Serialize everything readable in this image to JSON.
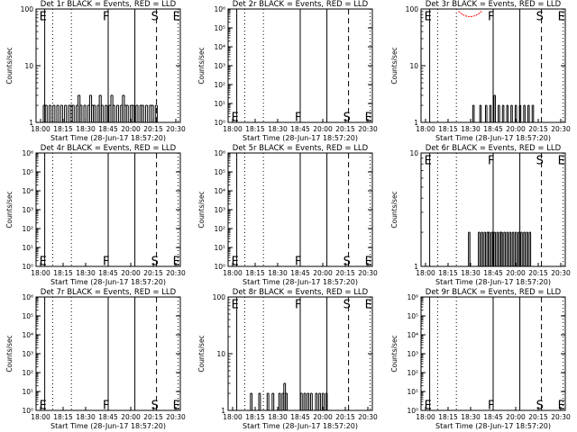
{
  "figure": {
    "layout": "3x3 grid of count-rate panels",
    "colors": {
      "events": "#000000",
      "lld": "#ff0000",
      "background": "#ffffff"
    }
  },
  "chart_data": [
    {
      "type": "bar",
      "panel": 1,
      "title": "Det 1r BLACK = Events, RED = LLD",
      "xlabel": "Start Time (28-Jun-17 18:57:20)",
      "ylabel": "Counts/sec",
      "yscale": "log",
      "ylim": [
        1,
        100
      ],
      "y_ticks": [
        {
          "v": 1,
          "label": "1"
        },
        {
          "v": 10,
          "label": "10"
        },
        {
          "v": 100,
          "label": "100"
        }
      ],
      "x_ticks": [
        "18:00",
        "18:15",
        "18:30",
        "18:45",
        "20:00",
        "20:15",
        "20:30"
      ],
      "lines": [
        {
          "x": 0.06,
          "style": "solid",
          "letter": "E",
          "y": 0.95
        },
        {
          "x": 0.245,
          "style": "dotted"
        },
        {
          "x": 0.5,
          "style": "solid",
          "letter": "F",
          "y": 0.95
        },
        {
          "x": 0.685,
          "style": "solid"
        },
        {
          "x": 0.835,
          "style": "dashed",
          "letter": "S",
          "y": 0.95
        },
        {
          "x": 0.985,
          "style": "dotted",
          "letter": "E",
          "y": 0.95
        },
        {
          "x": 0.115,
          "style": "dotted"
        },
        {
          "x": 1.0,
          "style": "dashed"
        }
      ],
      "events": {
        "start": 0.05,
        "end": 0.84,
        "values": [
          2,
          2,
          1,
          2,
          1,
          2,
          1,
          2,
          1,
          2,
          1,
          2,
          1,
          2,
          2,
          2,
          1,
          2,
          3,
          2,
          1,
          2,
          1,
          2,
          3,
          2,
          2,
          1,
          2,
          3,
          2,
          1,
          2,
          1,
          2,
          3,
          2,
          1,
          2,
          1,
          2,
          3,
          2,
          2,
          1,
          2,
          2,
          1,
          2,
          1,
          2,
          2,
          1,
          2,
          1,
          2,
          2,
          1,
          2
        ]
      }
    },
    {
      "type": "bar",
      "panel": 2,
      "title": "Det 2r BLACK = Events, RED = LLD",
      "xlabel": "Start Time (28-Jun-17 18:57:20)",
      "ylabel": "Counts/sec",
      "yscale": "log",
      "ylim": [
        1,
        1000000
      ],
      "y_ticks": [
        {
          "v": 1,
          "label": "10⁰"
        },
        {
          "v": 10,
          "label": "10¹"
        },
        {
          "v": 100,
          "label": "10²"
        },
        {
          "v": 1000,
          "label": "10³"
        },
        {
          "v": 10000,
          "label": "10⁴"
        },
        {
          "v": 100000,
          "label": "10⁵"
        },
        {
          "v": 1000000,
          "label": "10⁶"
        }
      ],
      "x_ticks": [
        "18:00",
        "18:15",
        "18:30",
        "18:45",
        "20:00",
        "20:15",
        "20:30"
      ],
      "lines": [
        {
          "x": 0.06,
          "style": "solid",
          "letter": "E",
          "y": 0.06
        },
        {
          "x": 0.245,
          "style": "dotted"
        },
        {
          "x": 0.5,
          "style": "solid",
          "letter": "F",
          "y": 0.06
        },
        {
          "x": 0.685,
          "style": "solid"
        },
        {
          "x": 0.835,
          "style": "dashed",
          "letter": "S",
          "y": 0.06
        },
        {
          "x": 0.985,
          "style": "dotted",
          "letter": "E",
          "y": 0.06
        },
        {
          "x": 0.115,
          "style": "dotted"
        },
        {
          "x": 1.0,
          "style": "dashed"
        }
      ],
      "events": {
        "start": 0.05,
        "end": 0.84,
        "values": []
      }
    },
    {
      "type": "bar",
      "panel": 3,
      "title": "Det 3r BLACK = Events, RED = LLD",
      "xlabel": "Start Time (28-Jun-17 18:57:20)",
      "ylabel": "Counts/sec",
      "yscale": "log",
      "ylim": [
        1,
        100
      ],
      "y_ticks": [
        {
          "v": 1,
          "label": "1"
        },
        {
          "v": 10,
          "label": "10"
        },
        {
          "v": 100,
          "label": "100"
        }
      ],
      "x_ticks": [
        "18:00",
        "18:15",
        "18:30",
        "18:45",
        "20:00",
        "20:15",
        "20:30"
      ],
      "lines": [
        {
          "x": 0.06,
          "style": "solid",
          "letter": "E",
          "y": 0.95
        },
        {
          "x": 0.245,
          "style": "dotted"
        },
        {
          "x": 0.5,
          "style": "solid",
          "letter": "F",
          "y": 0.95
        },
        {
          "x": 0.685,
          "style": "solid"
        },
        {
          "x": 0.835,
          "style": "dashed",
          "letter": "S",
          "y": 0.95
        },
        {
          "x": 0.985,
          "style": "dotted",
          "letter": "E",
          "y": 0.95
        },
        {
          "x": 0.115,
          "style": "dotted"
        },
        {
          "x": 1.0,
          "style": "dashed"
        }
      ],
      "lld_arc": {
        "x0": 0.26,
        "x1": 0.42,
        "y": 0.98
      },
      "events": {
        "start": 0.28,
        "end": 0.78,
        "values": [
          1,
          1,
          1,
          1,
          1,
          1,
          1,
          1,
          2,
          1,
          1,
          1,
          1,
          2,
          1,
          1,
          1,
          2,
          1,
          1,
          2,
          1,
          1,
          3,
          1,
          1,
          2,
          1,
          1,
          2,
          1,
          1,
          2,
          1,
          1,
          2,
          1,
          1,
          2,
          1,
          1,
          2,
          1,
          1,
          2,
          1,
          1,
          2,
          1,
          1,
          2
        ]
      }
    },
    {
      "type": "bar",
      "panel": 4,
      "title": "Det 4r BLACK = Events, RED = LLD",
      "xlabel": "Start Time (28-Jun-17 18:57:20)",
      "ylabel": "Counts/sec",
      "yscale": "log",
      "ylim": [
        1,
        1000000
      ],
      "y_ticks": [
        {
          "v": 1,
          "label": "10⁰"
        },
        {
          "v": 10,
          "label": "10¹"
        },
        {
          "v": 100,
          "label": "10²"
        },
        {
          "v": 1000,
          "label": "10³"
        },
        {
          "v": 10000,
          "label": "10⁴"
        },
        {
          "v": 100000,
          "label": "10⁵"
        },
        {
          "v": 1000000,
          "label": "10⁶"
        }
      ],
      "x_ticks": [
        "18:00",
        "18:15",
        "18:30",
        "18:45",
        "20:00",
        "20:15",
        "20:30"
      ],
      "lines": [
        {
          "x": 0.06,
          "style": "solid",
          "letter": "E",
          "y": 0.06
        },
        {
          "x": 0.245,
          "style": "dotted"
        },
        {
          "x": 0.5,
          "style": "solid",
          "letter": "F",
          "y": 0.06
        },
        {
          "x": 0.685,
          "style": "solid"
        },
        {
          "x": 0.835,
          "style": "dashed",
          "letter": "S",
          "y": 0.06
        },
        {
          "x": 0.985,
          "style": "dotted",
          "letter": "E",
          "y": 0.06
        },
        {
          "x": 0.115,
          "style": "dotted"
        },
        {
          "x": 1.0,
          "style": "dashed"
        }
      ],
      "events": {
        "start": 0.05,
        "end": 0.84,
        "values": []
      }
    },
    {
      "type": "bar",
      "panel": 5,
      "title": "Det 5r BLACK = Events, RED = LLD",
      "xlabel": "Start Time (28-Jun-17 18:57:20)",
      "ylabel": "Counts/sec",
      "yscale": "log",
      "ylim": [
        1,
        1000000
      ],
      "y_ticks": [
        {
          "v": 1,
          "label": "10⁰"
        },
        {
          "v": 10,
          "label": "10¹"
        },
        {
          "v": 100,
          "label": "10²"
        },
        {
          "v": 1000,
          "label": "10³"
        },
        {
          "v": 10000,
          "label": "10⁴"
        },
        {
          "v": 100000,
          "label": "10⁵"
        },
        {
          "v": 1000000,
          "label": "10⁶"
        }
      ],
      "x_ticks": [
        "18:00",
        "18:15",
        "18:30",
        "18:45",
        "20:00",
        "20:15",
        "20:30"
      ],
      "lines": [
        {
          "x": 0.06,
          "style": "solid",
          "letter": "E",
          "y": 0.06
        },
        {
          "x": 0.245,
          "style": "dotted"
        },
        {
          "x": 0.5,
          "style": "solid",
          "letter": "F",
          "y": 0.06
        },
        {
          "x": 0.685,
          "style": "solid"
        },
        {
          "x": 0.835,
          "style": "dashed",
          "letter": "S",
          "y": 0.06
        },
        {
          "x": 0.985,
          "style": "dotted",
          "letter": "E",
          "y": 0.06
        },
        {
          "x": 0.115,
          "style": "dotted"
        },
        {
          "x": 1.0,
          "style": "dashed"
        }
      ],
      "events": {
        "start": 0.05,
        "end": 0.84,
        "values": []
      }
    },
    {
      "type": "bar",
      "panel": 6,
      "title": "Det 6r BLACK = Events, RED = LLD",
      "xlabel": "Start Time (28-Jun-17 18:57:20)",
      "ylabel": "Counts/sec",
      "yscale": "log",
      "ylim": [
        1,
        10
      ],
      "y_ticks": [
        {
          "v": 1,
          "label": "1"
        },
        {
          "v": 10,
          "label": "10"
        }
      ],
      "x_ticks": [
        "18:00",
        "18:15",
        "18:30",
        "18:45",
        "20:00",
        "20:15",
        "20:30"
      ],
      "lines": [
        {
          "x": 0.06,
          "style": "solid",
          "letter": "E",
          "y": 0.95
        },
        {
          "x": 0.245,
          "style": "dotted"
        },
        {
          "x": 0.5,
          "style": "solid",
          "letter": "F",
          "y": 0.95
        },
        {
          "x": 0.685,
          "style": "solid"
        },
        {
          "x": 0.835,
          "style": "dashed",
          "letter": "S",
          "y": 0.95
        },
        {
          "x": 0.985,
          "style": "dotted",
          "letter": "E",
          "y": 0.95
        },
        {
          "x": 0.115,
          "style": "dotted"
        },
        {
          "x": 1.0,
          "style": "dashed"
        }
      ],
      "events": {
        "start": 0.28,
        "end": 0.76,
        "values": [
          1,
          1,
          1,
          1,
          1,
          2,
          1,
          1,
          1,
          1,
          1,
          1,
          2,
          1,
          2,
          1,
          2,
          1,
          2,
          2,
          1,
          2,
          1,
          2,
          1,
          2,
          1,
          2,
          2,
          1,
          2,
          1,
          2,
          1,
          2,
          1,
          2,
          1,
          2,
          1,
          2,
          1,
          2,
          1,
          2,
          1,
          2,
          1,
          2
        ]
      }
    },
    {
      "type": "bar",
      "panel": 7,
      "title": "Det 7r BLACK = Events, RED = LLD",
      "xlabel": "Start Time (28-Jun-17 18:57:20)",
      "ylabel": "Counts/sec",
      "yscale": "log",
      "ylim": [
        1,
        1000000
      ],
      "y_ticks": [
        {
          "v": 1,
          "label": "10⁰"
        },
        {
          "v": 10,
          "label": "10¹"
        },
        {
          "v": 100,
          "label": "10²"
        },
        {
          "v": 1000,
          "label": "10³"
        },
        {
          "v": 10000,
          "label": "10⁴"
        },
        {
          "v": 100000,
          "label": "10⁵"
        },
        {
          "v": 1000000,
          "label": "10⁶"
        }
      ],
      "x_ticks": [
        "18:00",
        "18:15",
        "18:30",
        "18:45",
        "20:00",
        "20:15",
        "20:30"
      ],
      "lines": [
        {
          "x": 0.06,
          "style": "solid",
          "letter": "E",
          "y": 0.06
        },
        {
          "x": 0.245,
          "style": "dotted"
        },
        {
          "x": 0.5,
          "style": "solid",
          "letter": "F",
          "y": 0.06
        },
        {
          "x": 0.685,
          "style": "solid"
        },
        {
          "x": 0.835,
          "style": "dashed",
          "letter": "S",
          "y": 0.06
        },
        {
          "x": 0.985,
          "style": "dotted",
          "letter": "E",
          "y": 0.06
        },
        {
          "x": 0.115,
          "style": "dotted"
        },
        {
          "x": 1.0,
          "style": "dashed"
        }
      ],
      "events": {
        "start": 0.05,
        "end": 0.84,
        "values": []
      }
    },
    {
      "type": "bar",
      "panel": 8,
      "title": "Det 8r BLACK = Events, RED = LLD",
      "xlabel": "Start Time (28-Jun-17 18:57:20)",
      "ylabel": "Counts/sec",
      "yscale": "log",
      "ylim": [
        1,
        100
      ],
      "y_ticks": [
        {
          "v": 1,
          "label": "1"
        },
        {
          "v": 10,
          "label": "10"
        },
        {
          "v": 100,
          "label": "100"
        }
      ],
      "x_ticks": [
        "18:00",
        "18:15",
        "18:30",
        "18:45",
        "20:00",
        "20:15",
        "20:30"
      ],
      "lines": [
        {
          "x": 0.06,
          "style": "solid",
          "letter": "E",
          "y": 0.95
        },
        {
          "x": 0.245,
          "style": "dotted"
        },
        {
          "x": 0.5,
          "style": "solid",
          "letter": "F",
          "y": 0.95
        },
        {
          "x": 0.685,
          "style": "solid"
        },
        {
          "x": 0.835,
          "style": "dashed",
          "letter": "S",
          "y": 0.95
        },
        {
          "x": 0.985,
          "style": "dotted",
          "letter": "E",
          "y": 0.95
        },
        {
          "x": 0.115,
          "style": "dotted"
        },
        {
          "x": 1.0,
          "style": "dashed"
        }
      ],
      "events": {
        "start": 0.12,
        "end": 0.78,
        "values": [
          1,
          1,
          1,
          2,
          1,
          1,
          1,
          1,
          2,
          1,
          1,
          1,
          1,
          2,
          1,
          1,
          2,
          1,
          1,
          1,
          2,
          1,
          2,
          3,
          2,
          1,
          1,
          1,
          1,
          1,
          1,
          1,
          1,
          2,
          1,
          2,
          1,
          2,
          1,
          2,
          1,
          1,
          2,
          1,
          2,
          1,
          2,
          1,
          2,
          1,
          1,
          1,
          1,
          1,
          1,
          1,
          1
        ]
      }
    },
    {
      "type": "bar",
      "panel": 9,
      "title": "Det 9r BLACK = Events, RED = LLD",
      "xlabel": "Start Time (28-Jun-17 18:57:20)",
      "ylabel": "Counts/sec",
      "yscale": "log",
      "ylim": [
        1,
        1000000
      ],
      "y_ticks": [
        {
          "v": 1,
          "label": "10⁰"
        },
        {
          "v": 10,
          "label": "10¹"
        },
        {
          "v": 100,
          "label": "10²"
        },
        {
          "v": 1000,
          "label": "10³"
        },
        {
          "v": 10000,
          "label": "10⁴"
        },
        {
          "v": 100000,
          "label": "10⁵"
        },
        {
          "v": 1000000,
          "label": "10⁶"
        }
      ],
      "x_ticks": [
        "18:00",
        "18:15",
        "18:30",
        "18:45",
        "20:00",
        "20:15",
        "20:30"
      ],
      "lines": [
        {
          "x": 0.06,
          "style": "solid",
          "letter": "E",
          "y": 0.06
        },
        {
          "x": 0.245,
          "style": "dotted"
        },
        {
          "x": 0.5,
          "style": "solid",
          "letter": "F",
          "y": 0.06
        },
        {
          "x": 0.685,
          "style": "solid"
        },
        {
          "x": 0.835,
          "style": "dashed",
          "letter": "S",
          "y": 0.06
        },
        {
          "x": 0.985,
          "style": "dotted",
          "letter": "E",
          "y": 0.06
        },
        {
          "x": 0.115,
          "style": "dotted"
        },
        {
          "x": 1.0,
          "style": "dashed"
        }
      ],
      "events": {
        "start": 0.05,
        "end": 0.84,
        "values": []
      }
    }
  ]
}
